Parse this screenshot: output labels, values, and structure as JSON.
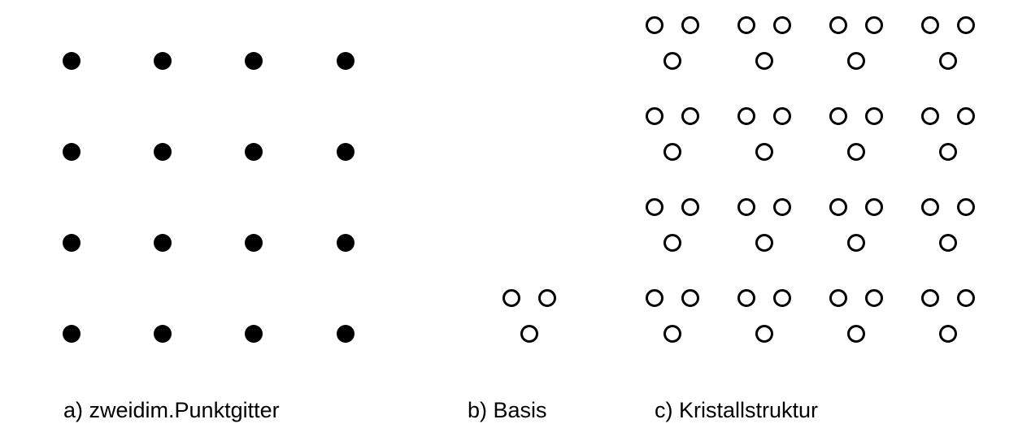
{
  "panels": {
    "lattice": {
      "caption": "a) zweidim.Punktgitter",
      "rows": 4,
      "cols": 4
    },
    "basis": {
      "caption": "b) Basis",
      "atoms": 3
    },
    "crystal": {
      "caption": "c) Kristallstruktur",
      "rows": 4,
      "cols": 4
    }
  },
  "colors": {
    "ink": "#000000",
    "background": "#ffffff"
  }
}
